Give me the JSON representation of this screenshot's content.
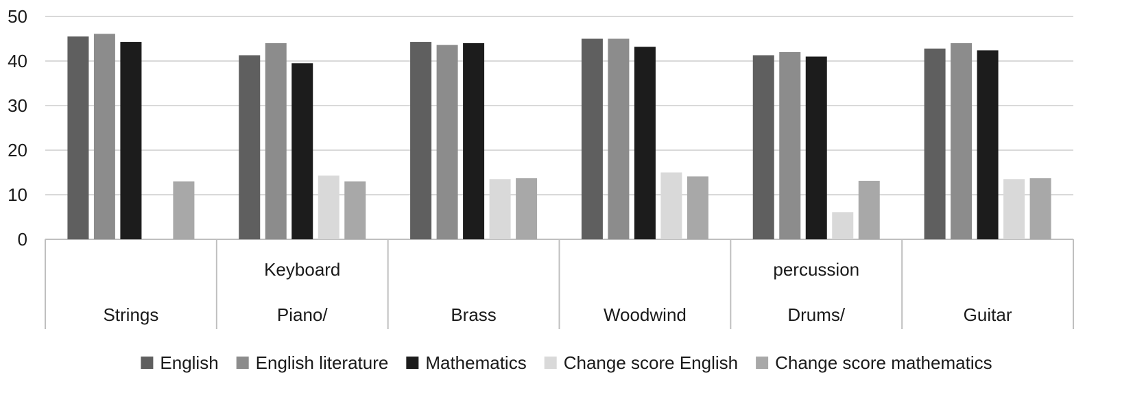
{
  "chart_data": {
    "type": "bar",
    "categories": [
      [
        "Strings"
      ],
      [
        "Keyboard",
        "Piano/"
      ],
      [
        "Brass"
      ],
      [
        "Woodwind"
      ],
      [
        "percussion",
        "Drums/"
      ],
      [
        "Guitar"
      ]
    ],
    "series": [
      {
        "name": "English",
        "color": "#5f5f5f",
        "values": [
          45.5,
          41.3,
          44.3,
          45.0,
          41.3,
          42.8
        ]
      },
      {
        "name": "English literature",
        "color": "#8c8c8c",
        "values": [
          46.1,
          44.0,
          43.6,
          45.0,
          42.0,
          44.0
        ]
      },
      {
        "name": "Mathematics",
        "color": "#1c1c1c",
        "values": [
          44.3,
          39.5,
          44.0,
          43.2,
          41.0,
          42.4
        ]
      },
      {
        "name": "Change score English",
        "color": "#d9d9d9",
        "values": [
          null,
          14.3,
          13.5,
          15.0,
          6.1,
          13.5
        ]
      },
      {
        "name": "Change score mathematics",
        "color": "#a8a8a8",
        "values": [
          13.0,
          13.0,
          13.7,
          14.1,
          13.1,
          13.7
        ]
      }
    ],
    "ylim": [
      0,
      50
    ],
    "yticks": [
      0,
      10,
      20,
      30,
      40,
      50
    ],
    "grid": true,
    "legend_position": "bottom"
  }
}
